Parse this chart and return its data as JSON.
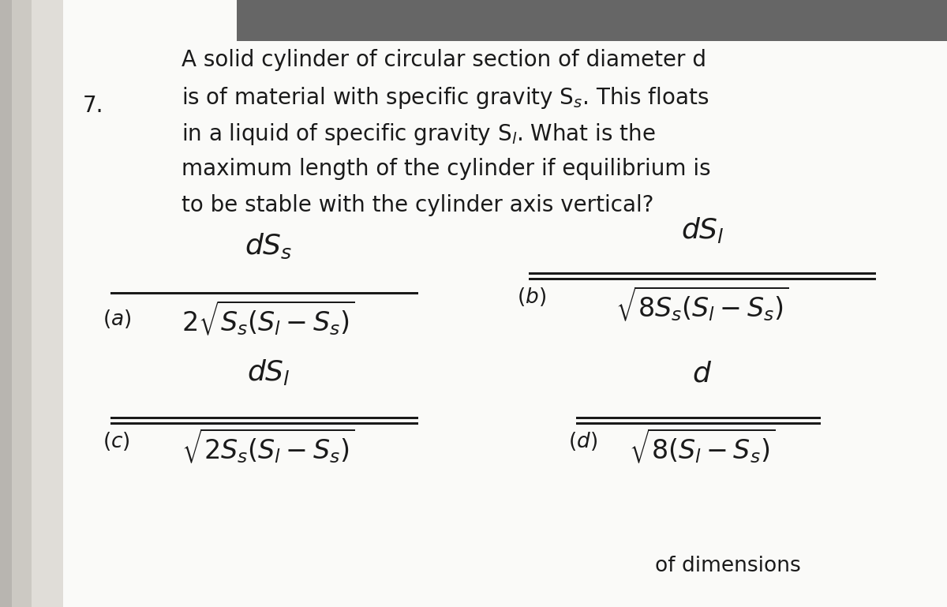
{
  "figsize": [
    12.0,
    7.69
  ],
  "dpi": 100,
  "bg_color": "#f0eeeb",
  "left_shadow_color": "#d8d5d0",
  "top_bar_color": "#5a5a5a",
  "text_color": "#1a1a1a",
  "question_number": "7.",
  "q_line1": "A solid cylinder of circular section of diameter d",
  "q_line2": "is of material with specific gravity S",
  "q_line2_sub": "s",
  "q_line2_end": ". This floats",
  "q_line3": "in a liquid of specific gravity S",
  "q_line3_sub": "l",
  "q_line3_end": ". What is the",
  "q_line4": "maximum length of the cylinder if equilibrium is",
  "q_line5": "to be stable with the cylinder axis vertical?",
  "opt_a_num": "dS_s",
  "opt_a_den": "2\\sqrt{S_s(S_l - S_s)}",
  "opt_b_num": "dS_l",
  "opt_b_den": "\\sqrt{8S_s(S_l - S_s)}",
  "opt_c_num": "dS_l",
  "opt_c_den": "\\sqrt{2S_s(S_l - S_s)}",
  "opt_d_num": "d",
  "opt_d_den": "\\sqrt{8(S_l - S_s)}",
  "bottom_text": "of dimensions"
}
